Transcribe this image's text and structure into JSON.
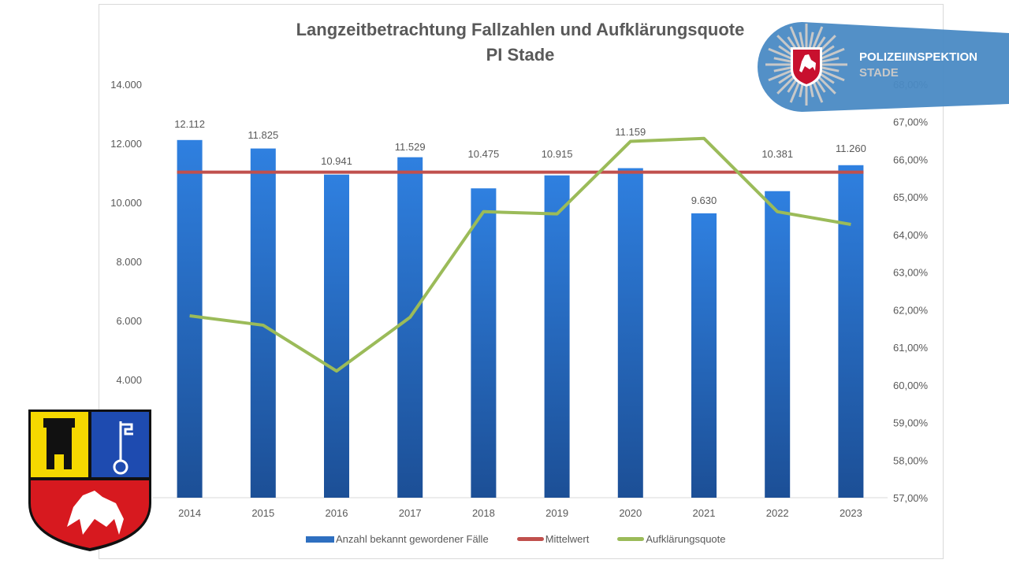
{
  "chart_data": {
    "type": "bar",
    "title": "Langzeitbetrachtung Fallzahlen und Aufklärungsquote",
    "subtitle": "PI Stade",
    "categories": [
      "2014",
      "2015",
      "2016",
      "2017",
      "2018",
      "2019",
      "2020",
      "2021",
      "2022",
      "2023"
    ],
    "series": [
      {
        "name": "Anzahl bekannt gewordener Fälle",
        "type": "bar",
        "axis": "left",
        "color": "#2e7bd6",
        "values": [
          12112,
          11825,
          10941,
          11529,
          10475,
          10915,
          11159,
          9630,
          10381,
          11260
        ],
        "labels": [
          "12.112",
          "11.825",
          "10.941",
          "11.529",
          "10.475",
          "10.915",
          "11.159",
          "9.630",
          "10.381",
          "11.260"
        ]
      },
      {
        "name": "Mittelwert",
        "type": "line",
        "axis": "left",
        "color": "#c0504d",
        "values": [
          11023,
          11023,
          11023,
          11023,
          11023,
          11023,
          11023,
          11023,
          11023,
          11023
        ]
      },
      {
        "name": "Aufklärungsquote",
        "type": "line",
        "axis": "right",
        "color": "#9bbb59",
        "values": [
          61.84,
          61.59,
          60.37,
          61.8,
          64.61,
          64.55,
          66.48,
          66.56,
          64.61,
          64.27
        ]
      }
    ],
    "y_left": {
      "range": [
        0,
        14000
      ],
      "ticks": [
        "14.000",
        "12.000",
        "10.000",
        "8.000",
        "6.000",
        "4.000"
      ],
      "tick_values": [
        14000,
        12000,
        10000,
        8000,
        6000,
        4000
      ]
    },
    "y_right": {
      "range": [
        57,
        68
      ],
      "ticks": [
        "68,00%",
        "67,00%",
        "66,00%",
        "65,00%",
        "64,00%",
        "63,00%",
        "62,00%",
        "61,00%",
        "60,00%",
        "59,00%",
        "58,00%",
        "57,00%"
      ],
      "tick_values": [
        68,
        67,
        66,
        65,
        64,
        63,
        62,
        61,
        60,
        59,
        58,
        57
      ]
    },
    "grid": false,
    "legend": "bottom"
  },
  "logo": {
    "line1": "POLIZEIINSPEKTION",
    "line2": "STADE",
    "color": "#4a8ac4"
  }
}
